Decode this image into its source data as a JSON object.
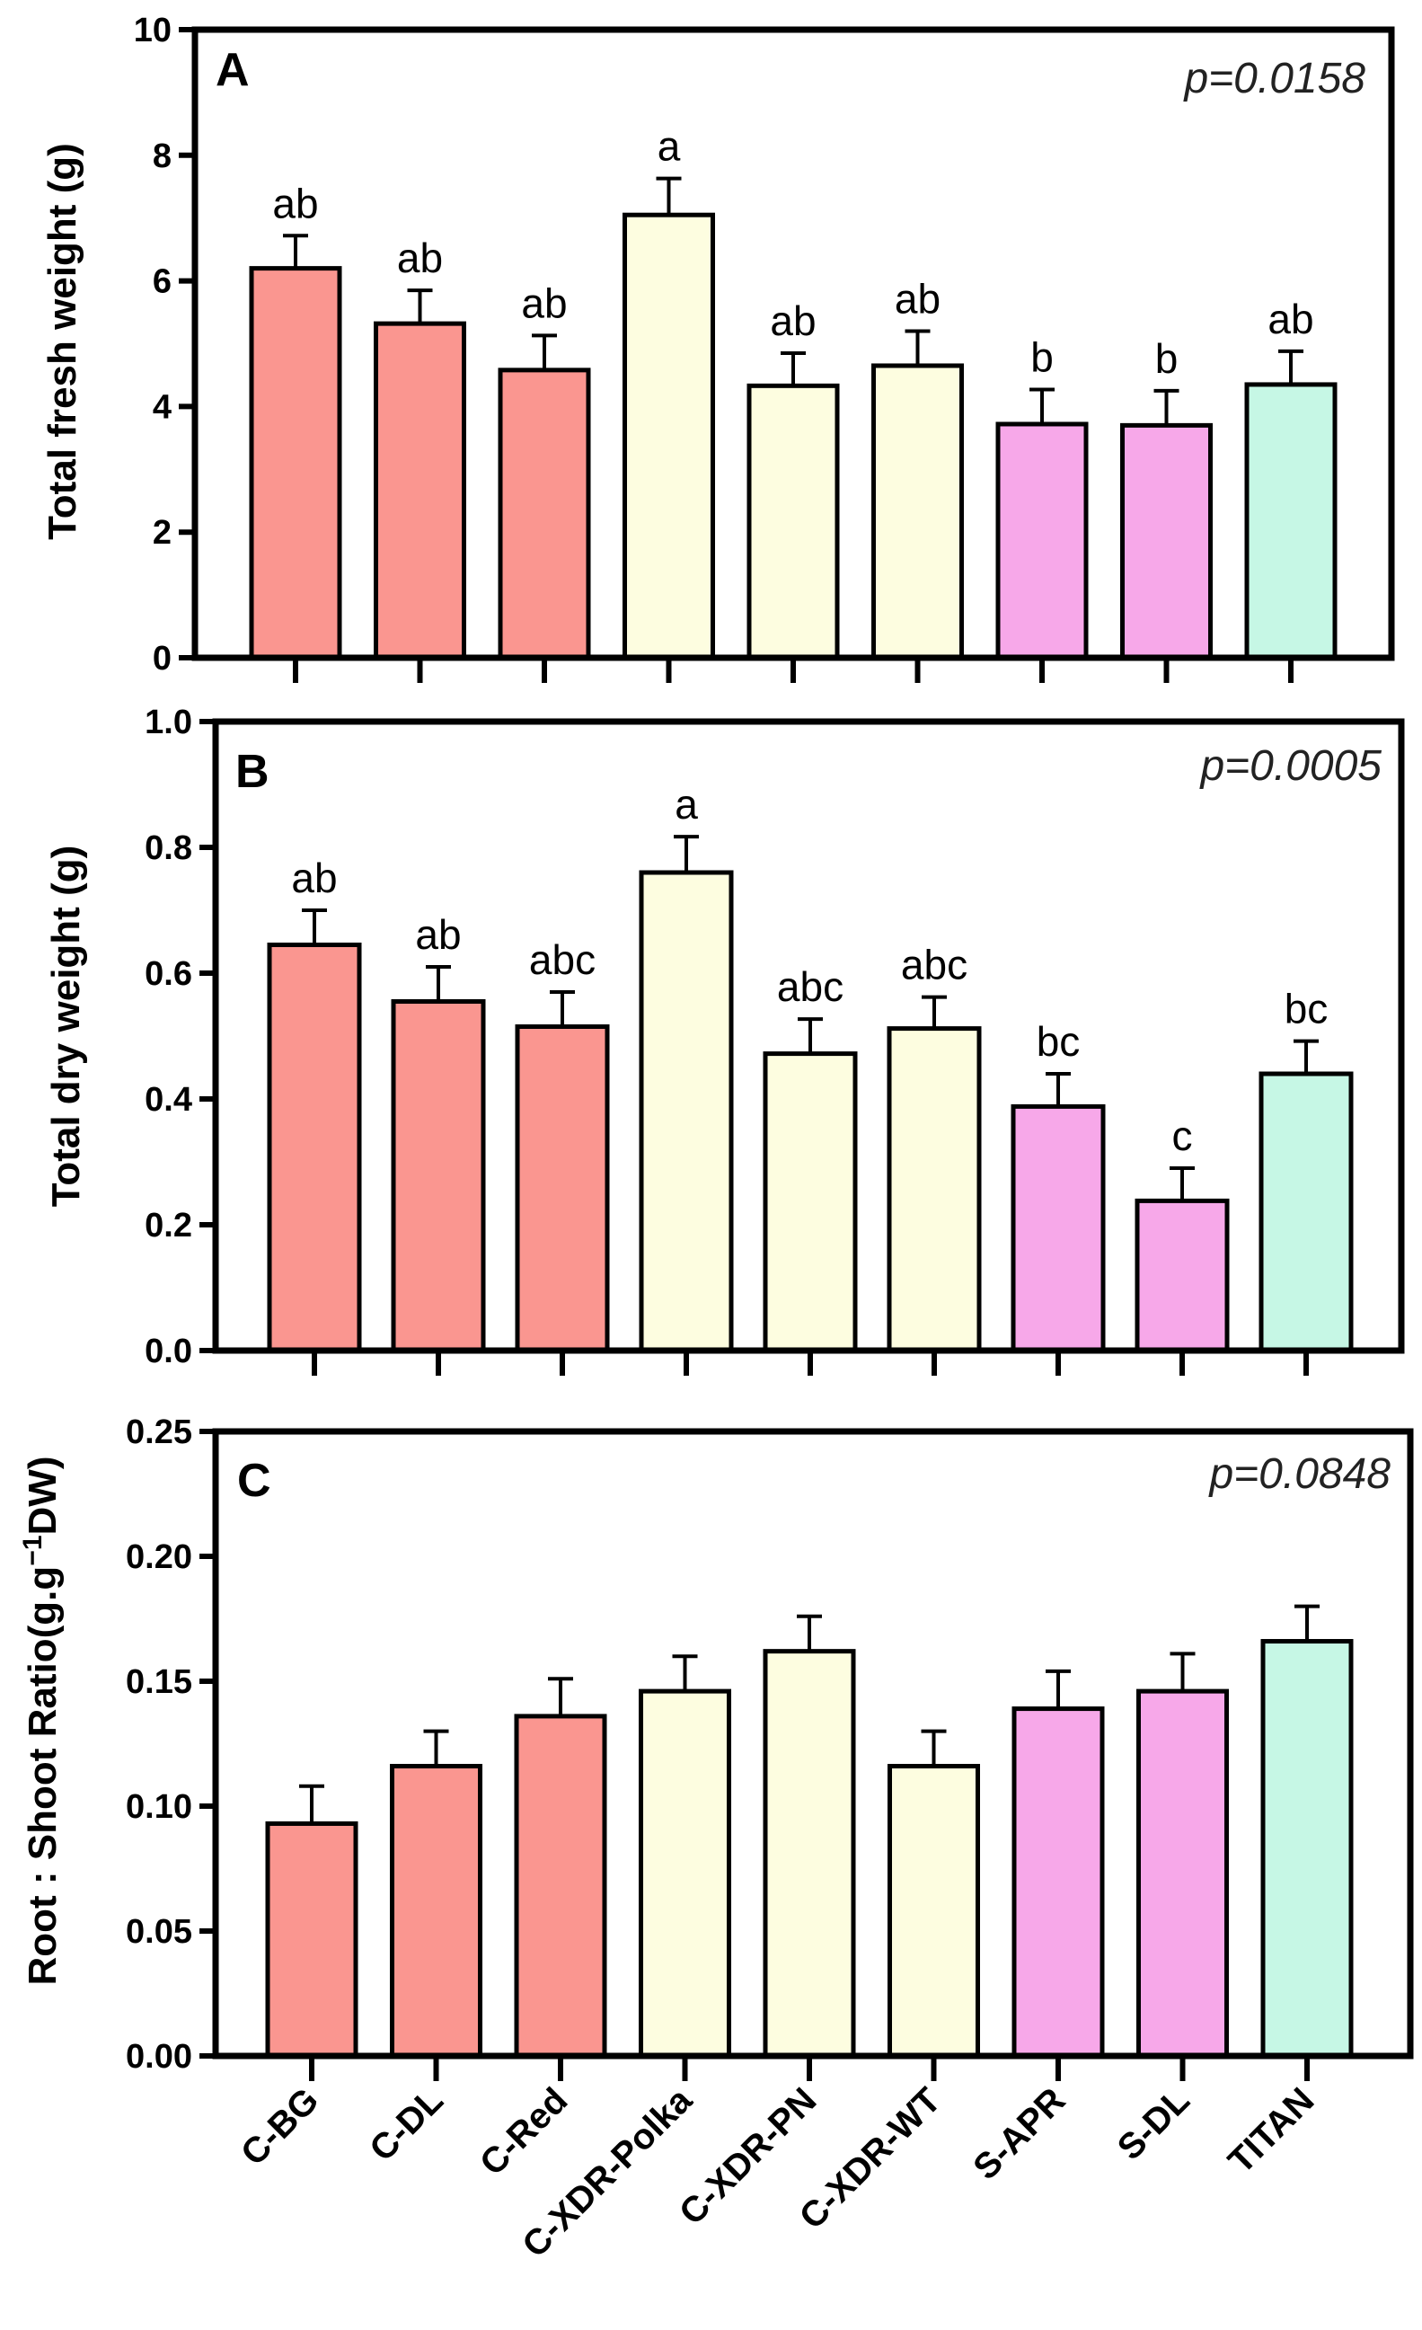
{
  "colors": {
    "C": "#fa9690",
    "XDR": "#fdfde0",
    "S": "#f7a8e9",
    "T": "#c6f7e5",
    "stroke": "#000000"
  },
  "categories": [
    "C-BG",
    "C-DL",
    "C-Red",
    "C-XDR-Polka",
    "C-XDR-PN",
    "C-XDR-WT",
    "S-APR",
    "S-DL",
    "TITAN"
  ],
  "category_groups": [
    "C",
    "C",
    "C",
    "XDR",
    "XDR",
    "XDR",
    "S",
    "S",
    "T"
  ],
  "chart_data": [
    {
      "type": "bar",
      "panel": "A",
      "ylabel": "Total fresh weight (g)",
      "pvalue": "p=0.0158",
      "ylim": [
        0,
        10
      ],
      "yticks": [
        "0",
        "2",
        "4",
        "6",
        "8",
        "10"
      ],
      "ytick_values": [
        0,
        2,
        4,
        6,
        8,
        10
      ],
      "values": [
        6.2,
        5.32,
        4.58,
        7.05,
        4.33,
        4.65,
        3.72,
        3.7,
        4.35
      ],
      "errors": [
        0.52,
        0.53,
        0.55,
        0.58,
        0.52,
        0.55,
        0.55,
        0.55,
        0.53
      ],
      "letters": [
        "ab",
        "ab",
        "ab",
        "a",
        "ab",
        "ab",
        "b",
        "b",
        "ab"
      ]
    },
    {
      "type": "bar",
      "panel": "B",
      "ylabel": "Total dry weight (g)",
      "pvalue": "p=0.0005",
      "ylim": [
        0,
        1.0
      ],
      "yticks": [
        "0.0",
        "0.2",
        "0.4",
        "0.6",
        "0.8",
        "1.0"
      ],
      "ytick_values": [
        0,
        0.2,
        0.4,
        0.6,
        0.8,
        1.0
      ],
      "values": [
        0.645,
        0.555,
        0.515,
        0.76,
        0.472,
        0.512,
        0.388,
        0.238,
        0.44
      ],
      "errors": [
        0.055,
        0.055,
        0.055,
        0.057,
        0.055,
        0.05,
        0.052,
        0.052,
        0.052
      ],
      "letters": [
        "ab",
        "ab",
        "abc",
        "a",
        "abc",
        "abc",
        "bc",
        "c",
        "bc"
      ]
    },
    {
      "type": "bar",
      "panel": "C",
      "ylabel": "Root : Shoot Ratio(g.g",
      "ylabel_sup": "−1",
      "ylabel_tail": "DW)",
      "pvalue": "p=0.0848",
      "ylim": [
        0,
        0.25
      ],
      "yticks": [
        "0.00",
        "0.05",
        "0.10",
        "0.15",
        "0.20",
        "0.25"
      ],
      "ytick_values": [
        0,
        0.05,
        0.1,
        0.15,
        0.2,
        0.25
      ],
      "values": [
        0.093,
        0.116,
        0.136,
        0.146,
        0.162,
        0.116,
        0.139,
        0.146,
        0.166
      ],
      "errors": [
        0.015,
        0.014,
        0.015,
        0.014,
        0.014,
        0.014,
        0.015,
        0.015,
        0.014
      ],
      "letters": []
    }
  ]
}
